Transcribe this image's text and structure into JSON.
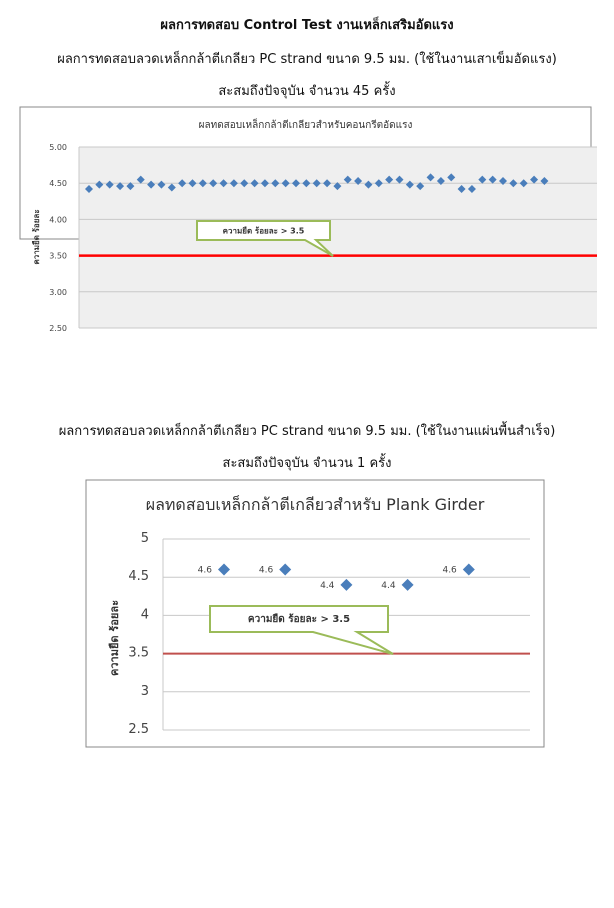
{
  "heading": "ผลการทดสอบ Control Test งานเหล็กเสริมอัดแรง",
  "section1": {
    "subtitle": "ผลการทดสอบลวดเหล็กกล้าตีเกลียว PC strand ขนาด 9.5 มม. (ใช้ในงานเสาเข็มอัดแรง)",
    "count": "สะสมถึงปัจจุบัน จำนวน 45 ครั้ง"
  },
  "section2": {
    "subtitle": "ผลการทดสอบลวดเหล็กกล้าตีเกลียว PC strand ขนาด 9.5 มม. (ใช้ในงานแผ่นพื้นสำเร็จ)",
    "count": "สะสมถึงปัจจุบัน จำนวน 1 ครั้ง"
  },
  "chart_data": [
    {
      "type": "scatter",
      "title": "ผลทดสอบเหล็กกล้าตีเกลียวสำหรับคอนกรีตอัดแรง",
      "ylabel": "ความยืด ร้อยละ",
      "ylim": [
        2.5,
        5.0
      ],
      "yticks": [
        "5.00",
        "4.50",
        "4.00",
        "3.50",
        "3.00",
        "2.50"
      ],
      "values": [
        4.42,
        4.48,
        4.48,
        4.46,
        4.46,
        4.55,
        4.48,
        4.48,
        4.44,
        4.5,
        4.5,
        4.5,
        4.5,
        4.5,
        4.5,
        4.5,
        4.5,
        4.5,
        4.5,
        4.5,
        4.5,
        4.5,
        4.5,
        4.5,
        4.46,
        4.55,
        4.53,
        4.48,
        4.5,
        4.55,
        4.55,
        4.48,
        4.46,
        4.58,
        4.53,
        4.58,
        4.42,
        4.42,
        4.55,
        4.55,
        4.53,
        4.5,
        4.5,
        4.55,
        4.53
      ],
      "threshold": 3.5,
      "annotation": "ความยืด ร้อยละ > 3.5",
      "marker_color": "#4a7ebb",
      "threshold_color": "#ff0000"
    },
    {
      "type": "scatter",
      "title": "ผลทดสอบเหล็กกล้าตีเกลียวสำหรับ Plank Girder",
      "ylabel": "ความยืด ร้อยละ",
      "ylim": [
        2.5,
        5.0
      ],
      "yticks": [
        "5",
        "4.5",
        "4",
        "3.5",
        "3",
        "2.5"
      ],
      "values": [
        4.6,
        4.6,
        4.4,
        4.4,
        4.6
      ],
      "labels": [
        "4.6",
        "4.6",
        "4.4",
        "4.4",
        "4.6"
      ],
      "threshold": 3.5,
      "annotation": "ความยืด ร้อยละ > 3.5",
      "marker_color": "#4a7ebb",
      "threshold_color": "#c0504d"
    }
  ]
}
